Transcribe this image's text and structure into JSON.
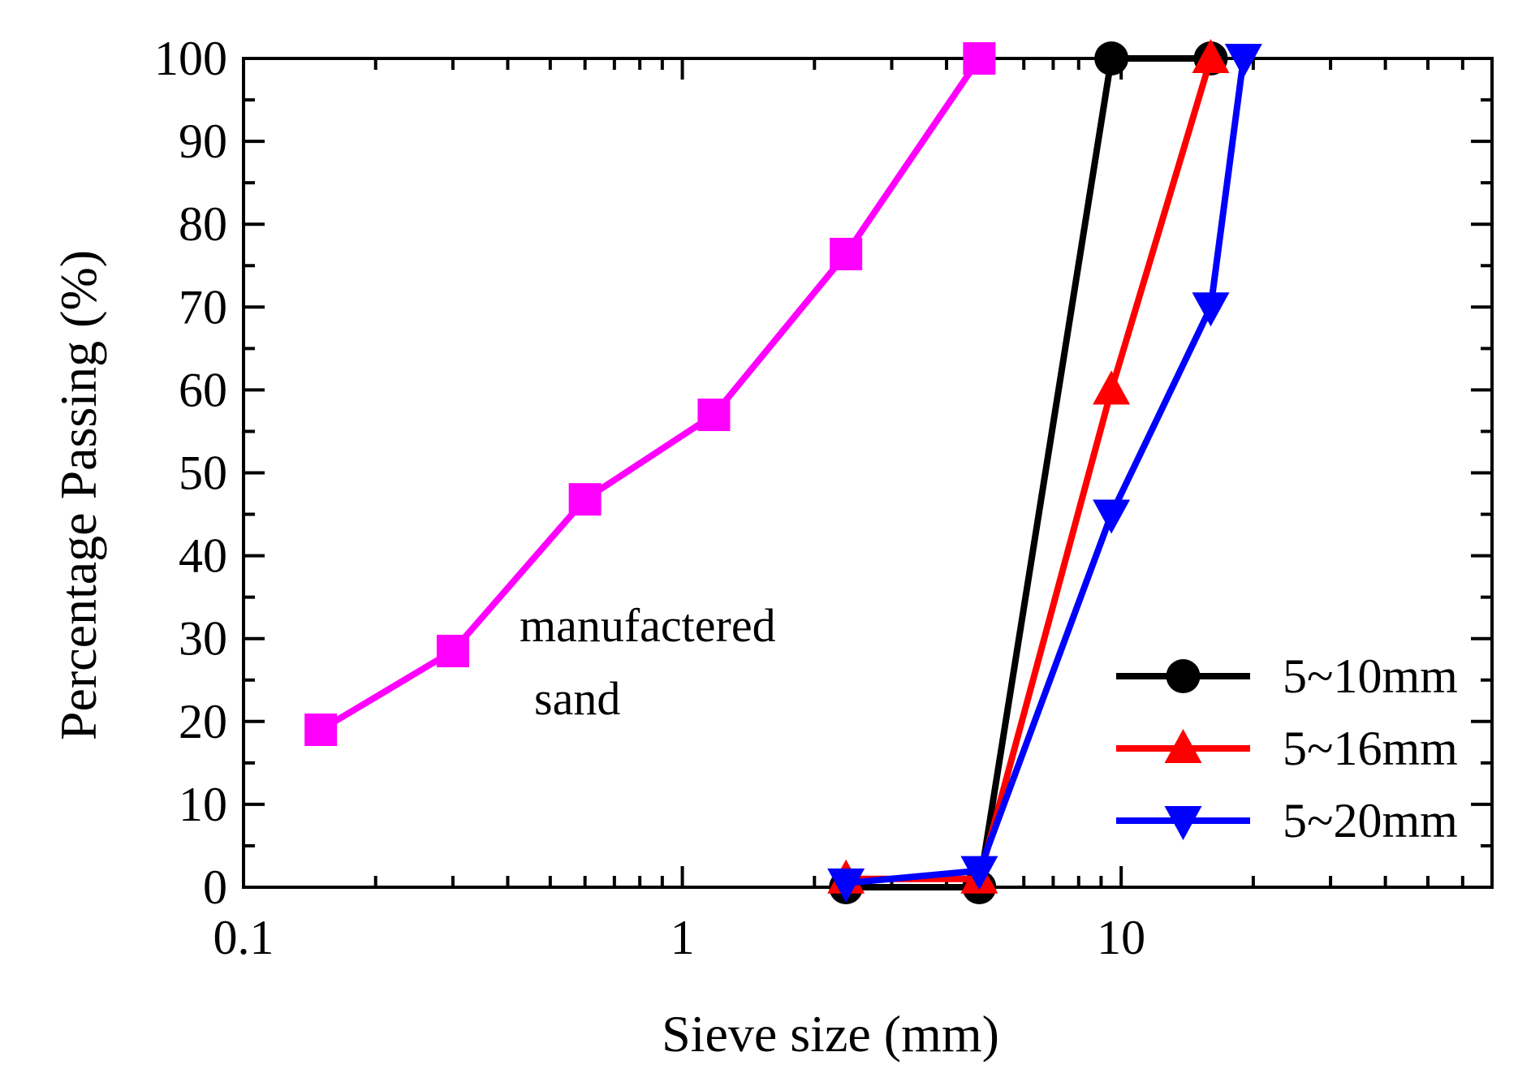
{
  "chart_data": {
    "type": "line",
    "title": "",
    "xlabel": "Sieve size (mm)",
    "ylabel": "Percentage Passing (%)",
    "xscale": "log",
    "xlim": [
      0.1,
      70
    ],
    "ylim": [
      0,
      100
    ],
    "xticks": [
      0.1,
      1,
      10
    ],
    "xtick_labels": [
      "0.1",
      "1",
      "10"
    ],
    "yticks": [
      0,
      10,
      20,
      30,
      40,
      50,
      60,
      70,
      80,
      90,
      100
    ],
    "ytick_labels": [
      "0",
      "10",
      "20",
      "30",
      "40",
      "50",
      "60",
      "70",
      "80",
      "90",
      "100"
    ],
    "grid": false,
    "legend_position": "bottom-right",
    "annotations": [
      {
        "text": "manufactered",
        "x": 0.4,
        "y": 31
      },
      {
        "text": "sand",
        "x": 0.43,
        "y": 22
      }
    ],
    "series": [
      {
        "name": "manufactered sand",
        "color": "#ff00ff",
        "marker": "square",
        "in_legend": false,
        "x": [
          0.15,
          0.3,
          0.6,
          1.18,
          2.36,
          4.75
        ],
        "y": [
          19,
          28.5,
          46.8,
          57,
          76.4,
          100
        ]
      },
      {
        "name": "5~10mm",
        "color": "#000000",
        "marker": "circle",
        "in_legend": true,
        "x": [
          2.36,
          4.75,
          9.5,
          16
        ],
        "y": [
          0,
          0,
          100,
          100
        ]
      },
      {
        "name": "5~16mm",
        "color": "#ff0000",
        "marker": "triangle-up",
        "in_legend": true,
        "x": [
          2.36,
          4.75,
          9.5,
          16
        ],
        "y": [
          1,
          1,
          60,
          100
        ]
      },
      {
        "name": "5~20mm",
        "color": "#0000ff",
        "marker": "triangle-down",
        "in_legend": true,
        "x": [
          2.36,
          4.75,
          9.5,
          16,
          19
        ],
        "y": [
          0.5,
          2,
          45,
          70,
          100
        ]
      }
    ]
  }
}
